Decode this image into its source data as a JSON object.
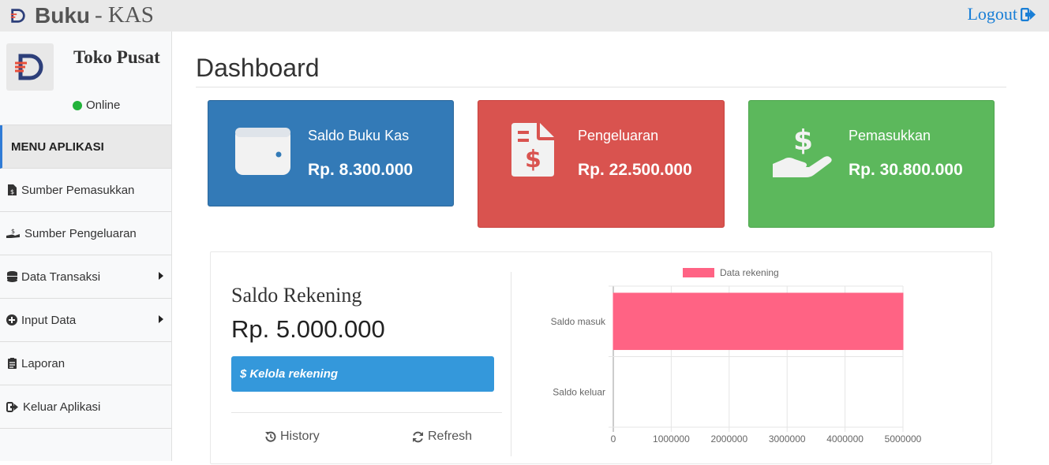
{
  "app": {
    "brand_bold": "Buku",
    "brand_light": "- KAS",
    "logout_label": "Logout"
  },
  "user": {
    "name": "Toko Pusat",
    "status": "Online"
  },
  "sidebar": {
    "header": "MENU APLIKASI",
    "items": [
      {
        "label": "Sumber Pemasukkan",
        "icon": "file-invoice-icon",
        "has_submenu": false
      },
      {
        "label": "Sumber Pengeluaran",
        "icon": "hand-dollar-icon",
        "has_submenu": false
      },
      {
        "label": "Data Transaksi",
        "icon": "database-icon",
        "has_submenu": true
      },
      {
        "label": "Input Data",
        "icon": "plus-circle-icon",
        "has_submenu": true
      },
      {
        "label": "Laporan",
        "icon": "clipboard-icon",
        "has_submenu": false
      },
      {
        "label": "Keluar Aplikasi",
        "icon": "sign-out-icon",
        "has_submenu": false
      }
    ]
  },
  "main": {
    "title": "Dashboard"
  },
  "cards": [
    {
      "label": "Saldo Buku Kas",
      "value": "Rp. 8.300.000",
      "color": "#337ab7",
      "icon": "wallet-icon"
    },
    {
      "label": "Pengeluaran",
      "value": "Rp. 22.500.000",
      "color": "#d9534f",
      "icon": "invoice-dollar-icon"
    },
    {
      "label": "Pemasukkan",
      "value": "Rp. 30.800.000",
      "color": "#5cb85c",
      "icon": "hand-holding-dollar-icon"
    }
  ],
  "rekening": {
    "title": "Saldo Rekening",
    "value": "Rp. 5.000.000",
    "kelola_label": "Kelola rekening",
    "history_label": "History",
    "refresh_label": "Refresh"
  },
  "chart_data": {
    "type": "bar",
    "orientation": "horizontal",
    "categories": [
      "Saldo masuk",
      "Saldo keluar"
    ],
    "series": [
      {
        "name": "Data rekening",
        "values": [
          5000000,
          0
        ],
        "color": "#ff6384"
      }
    ],
    "xlim": [
      0,
      5000000
    ],
    "xticks": [
      "0",
      "1000000",
      "2000000",
      "3000000",
      "4000000",
      "5000000"
    ],
    "legend": "top",
    "grid": true
  }
}
